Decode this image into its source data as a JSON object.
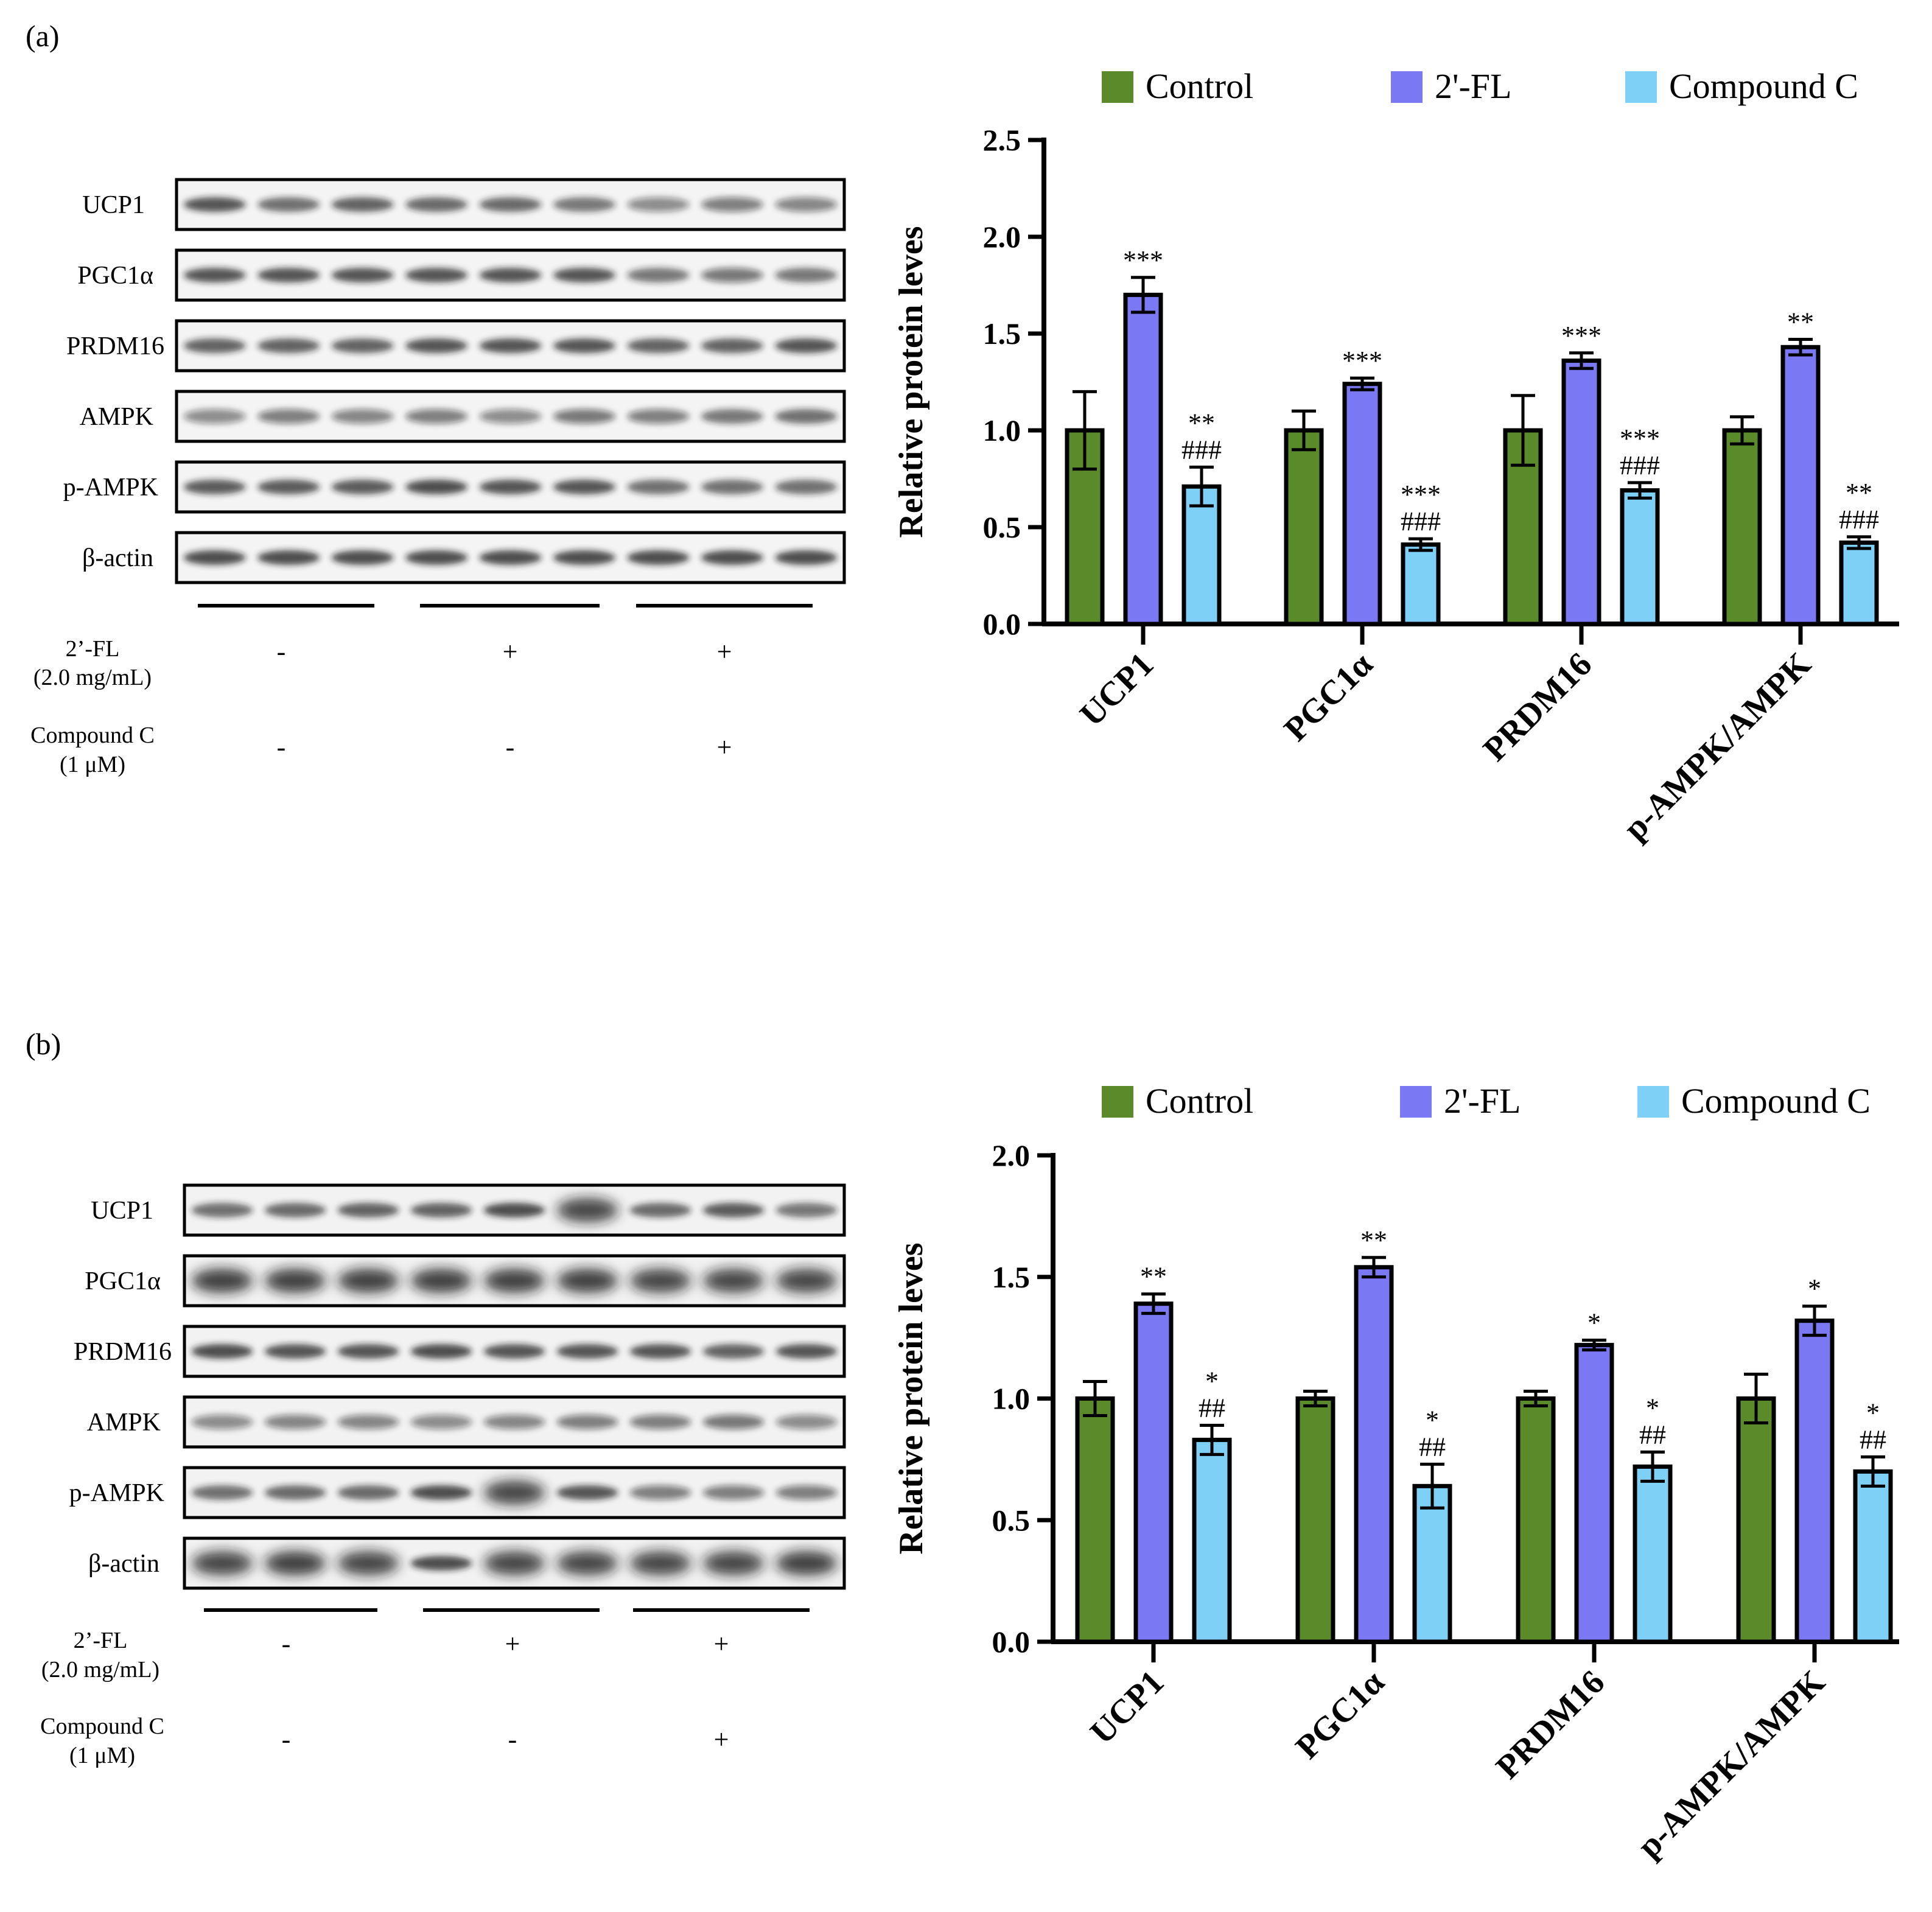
{
  "panels": [
    {
      "label": "(a)",
      "blot": {
        "rows": [
          "UCP1",
          "PGC1α",
          "PRDM16",
          "AMPK",
          "p-AMPK",
          "β-actin"
        ],
        "treatments": [
          {
            "name": "2’-FL",
            "dose": "(2.0 mg/mL)",
            "signs": [
              "-",
              "+",
              "+"
            ]
          },
          {
            "name": "Compound C",
            "dose": "(1 μM)",
            "signs": [
              "-",
              "-",
              "+"
            ]
          }
        ]
      }
    },
    {
      "label": "(b)",
      "blot": {
        "rows": [
          "UCP1",
          "PGC1α",
          "PRDM16",
          "AMPK",
          "p-AMPK",
          "β-actin"
        ],
        "treatments": [
          {
            "name": "2’-FL",
            "dose": "(2.0 mg/mL)",
            "signs": [
              "-",
              "+",
              "+"
            ]
          },
          {
            "name": "Compound C",
            "dose": "(1 μM)",
            "signs": [
              "-",
              "-",
              "+"
            ]
          }
        ]
      }
    }
  ],
  "colors": {
    "control": "#5b8a2b",
    "fl": "#7a78f2",
    "compound": "#7fd0f7"
  },
  "chart_data": [
    {
      "type": "bar",
      "title": "",
      "xlabel": "",
      "ylabel": "Relative protein leves",
      "ylim": [
        0,
        2.5
      ],
      "yticks": [
        "0.0",
        "0.5",
        "1.0",
        "1.5",
        "2.0",
        "2.5"
      ],
      "categories": [
        "UCP1",
        "PGC1α",
        "PRDM16",
        "p-AMPK/AMPK"
      ],
      "legend": [
        "Control",
        "2'-FL",
        "Compound C"
      ],
      "legend_position": "top",
      "series": [
        {
          "name": "Control",
          "values": [
            1.0,
            1.0,
            1.0,
            1.0
          ],
          "errors": [
            0.2,
            0.1,
            0.18,
            0.07
          ],
          "labels": [
            "",
            "",
            "",
            ""
          ]
        },
        {
          "name": "2'-FL",
          "values": [
            1.7,
            1.24,
            1.36,
            1.43
          ],
          "errors": [
            0.09,
            0.03,
            0.04,
            0.04
          ],
          "labels": [
            "***",
            "***",
            "***",
            "**"
          ]
        },
        {
          "name": "Compound C",
          "values": [
            0.71,
            0.41,
            0.69,
            0.42
          ],
          "errors": [
            0.1,
            0.03,
            0.04,
            0.03
          ],
          "labels": [
            "**\n###",
            "***\n###",
            "***\n###",
            "**\n###"
          ]
        }
      ]
    },
    {
      "type": "bar",
      "title": "",
      "xlabel": "",
      "ylabel": "Relative protein leves",
      "ylim": [
        0,
        2.0
      ],
      "yticks": [
        "0.0",
        "0.5",
        "1.0",
        "1.5",
        "2.0"
      ],
      "categories": [
        "UCP1",
        "PGC1α",
        "PRDM16",
        "p-AMPK/AMPK"
      ],
      "legend": [
        "Control",
        "2'-FL",
        "Compound C"
      ],
      "legend_position": "top",
      "series": [
        {
          "name": "Control",
          "values": [
            1.0,
            1.0,
            1.0,
            1.0
          ],
          "errors": [
            0.07,
            0.03,
            0.03,
            0.1
          ],
          "labels": [
            "",
            "",
            "",
            ""
          ]
        },
        {
          "name": "2'-FL",
          "values": [
            1.39,
            1.54,
            1.22,
            1.32
          ],
          "errors": [
            0.04,
            0.04,
            0.02,
            0.06
          ],
          "labels": [
            "**",
            "**",
            "*",
            "*"
          ]
        },
        {
          "name": "Compound C",
          "values": [
            0.83,
            0.64,
            0.72,
            0.7
          ],
          "errors": [
            0.06,
            0.09,
            0.06,
            0.06
          ],
          "labels": [
            "*\n##",
            "*\n##",
            "*\n##",
            "*\n##"
          ]
        }
      ]
    }
  ]
}
